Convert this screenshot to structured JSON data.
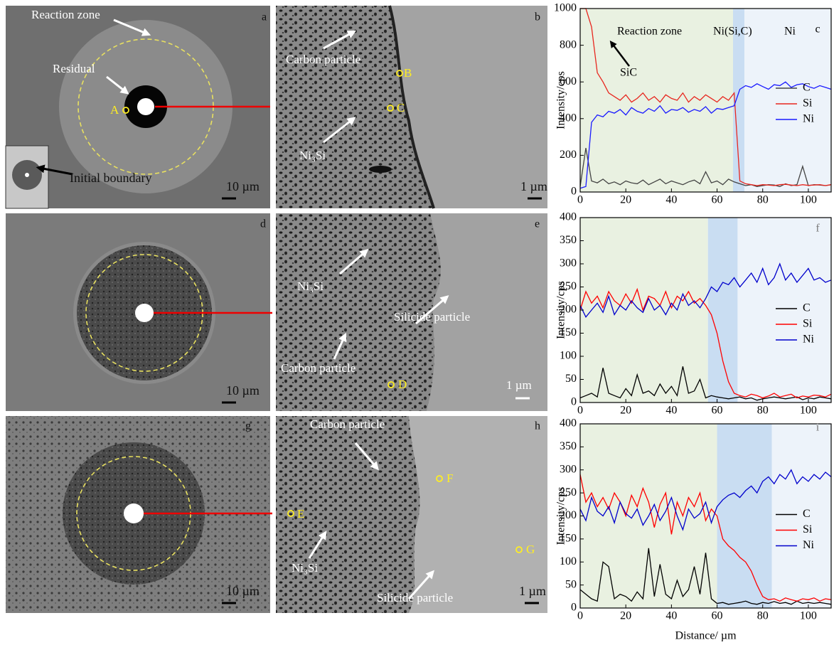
{
  "image_panels": [
    {
      "label": "a",
      "annotations": [
        "Reaction zone",
        "Residual",
        "A",
        "Initial boundary"
      ],
      "scale_bar": "10 µm"
    },
    {
      "label": "b",
      "annotations": [
        "Carbon particle",
        "B",
        "C",
        "Ni₃Si"
      ],
      "scale_bar": "1 µm"
    },
    {
      "label": "d",
      "scale_bar": "10 µm"
    },
    {
      "label": "e",
      "annotations": [
        "Ni₃Si",
        "Silicide particle",
        "Carbon particle",
        "D"
      ],
      "scale_bar": "1 µm"
    },
    {
      "label": "g",
      "scale_bar": "10 µm"
    },
    {
      "label": "h",
      "annotations": [
        "Carbon particle",
        "E",
        "F",
        "Ni₃Si",
        "G",
        "Silicide particle"
      ],
      "scale_bar": "1 µm"
    }
  ],
  "chart_data": [
    {
      "type": "line",
      "panel_label": "c",
      "y_label": "Intensity/cps",
      "annotations": [
        "Reaction zone",
        "Ni(Si,C)",
        "Ni",
        "SiC"
      ],
      "bands": [
        {
          "x": [
            0,
            67
          ],
          "color": "#e9f1e1"
        },
        {
          "x": [
            67,
            72
          ],
          "color": "#c9ddf2"
        },
        {
          "x": [
            72,
            110
          ],
          "color": "#edf3fa"
        }
      ],
      "x": [
        0,
        2.5,
        5,
        7.5,
        10,
        12.5,
        15,
        17.5,
        20,
        22.5,
        25,
        27.5,
        30,
        32.5,
        35,
        37.5,
        40,
        42.5,
        45,
        47.5,
        50,
        52.5,
        55,
        57.5,
        60,
        62.5,
        65,
        67.5,
        70,
        72.5,
        75,
        77.5,
        80,
        82.5,
        85,
        87.5,
        90,
        92.5,
        95,
        97.5,
        100,
        102.5,
        105,
        107.5,
        110
      ],
      "series": [
        {
          "name": "C",
          "color": "#444444",
          "values": [
            30,
            240,
            60,
            50,
            70,
            45,
            55,
            40,
            60,
            50,
            45,
            65,
            40,
            55,
            70,
            45,
            60,
            50,
            40,
            55,
            65,
            45,
            110,
            50,
            60,
            40,
            70,
            55,
            45,
            35,
            40,
            30,
            35,
            40,
            38,
            30,
            45,
            35,
            40,
            140,
            35,
            40,
            38,
            35,
            40
          ]
        },
        {
          "name": "Si",
          "color": "#e8261e",
          "values": [
            1000,
            1000,
            900,
            650,
            600,
            540,
            520,
            500,
            530,
            490,
            510,
            540,
            500,
            520,
            490,
            530,
            510,
            500,
            540,
            490,
            520,
            500,
            530,
            510,
            490,
            520,
            500,
            540,
            60,
            45,
            40,
            35,
            40,
            38,
            35,
            40,
            42,
            38,
            35,
            40,
            36,
            38,
            40,
            35,
            40
          ]
        },
        {
          "name": "Ni",
          "color": "#1a1aff",
          "values": [
            20,
            30,
            380,
            420,
            410,
            440,
            430,
            450,
            420,
            460,
            440,
            430,
            455,
            440,
            470,
            430,
            450,
            445,
            460,
            435,
            450,
            440,
            465,
            430,
            455,
            450,
            460,
            470,
            560,
            580,
            570,
            590,
            575,
            560,
            585,
            580,
            600,
            570,
            585,
            590,
            575,
            565,
            580,
            570,
            560
          ]
        }
      ],
      "xlim": [
        0,
        110
      ],
      "xticks": [
        0,
        20,
        40,
        60,
        80,
        100
      ],
      "ylim": [
        0,
        1000
      ],
      "yticks": [
        0,
        200,
        400,
        600,
        800,
        1000
      ],
      "legend": "center right"
    },
    {
      "type": "line",
      "panel_label": "f",
      "y_label": "Intensity/cps",
      "bands": [
        {
          "x": [
            0,
            56
          ],
          "color": "#e9f1e1"
        },
        {
          "x": [
            56,
            69
          ],
          "color": "#c9ddf2"
        },
        {
          "x": [
            69,
            110
          ],
          "color": "#edf3fa"
        }
      ],
      "x": [
        0,
        2.5,
        5,
        7.5,
        10,
        12.5,
        15,
        17.5,
        20,
        22.5,
        25,
        27.5,
        30,
        32.5,
        35,
        37.5,
        40,
        42.5,
        45,
        47.5,
        50,
        52.5,
        55,
        57.5,
        60,
        62.5,
        65,
        67.5,
        70,
        72.5,
        75,
        77.5,
        80,
        82.5,
        85,
        87.5,
        90,
        92.5,
        95,
        97.5,
        100,
        102.5,
        105,
        107.5,
        110
      ],
      "series": [
        {
          "name": "C",
          "color": "#000000",
          "values": [
            10,
            15,
            20,
            12,
            75,
            20,
            15,
            10,
            30,
            15,
            60,
            20,
            25,
            15,
            40,
            20,
            35,
            15,
            78,
            20,
            25,
            50,
            10,
            15,
            12,
            10,
            8,
            10,
            12,
            8,
            10,
            5,
            8,
            10,
            12,
            10,
            8,
            10,
            12,
            6,
            10,
            8,
            12,
            10,
            8
          ]
        },
        {
          "name": "Si",
          "color": "#ff0000",
          "values": [
            200,
            240,
            215,
            230,
            205,
            240,
            220,
            210,
            235,
            215,
            245,
            200,
            230,
            225,
            210,
            240,
            205,
            230,
            220,
            240,
            215,
            225,
            210,
            190,
            150,
            90,
            45,
            20,
            15,
            12,
            18,
            15,
            10,
            14,
            20,
            12,
            15,
            18,
            10,
            14,
            12,
            16,
            15,
            12,
            18
          ]
        },
        {
          "name": "Ni",
          "color": "#0000cc",
          "values": [
            210,
            185,
            200,
            215,
            195,
            230,
            190,
            210,
            200,
            220,
            205,
            195,
            225,
            200,
            210,
            190,
            215,
            200,
            235,
            210,
            220,
            205,
            225,
            250,
            240,
            260,
            255,
            270,
            250,
            265,
            280,
            260,
            290,
            255,
            270,
            300,
            265,
            280,
            260,
            275,
            290,
            265,
            270,
            260,
            265
          ]
        }
      ],
      "xlim": [
        0,
        110
      ],
      "xticks": [
        0,
        20,
        40,
        60,
        80,
        100
      ],
      "ylim": [
        0,
        400
      ],
      "yticks": [
        0,
        50,
        100,
        150,
        200,
        250,
        300,
        350,
        400
      ],
      "legend": "center right"
    },
    {
      "type": "line",
      "panel_label": "i",
      "y_label": "Intensity/cps",
      "x_label": "Distance/ µm",
      "bands": [
        {
          "x": [
            0,
            60
          ],
          "color": "#e9f1e1"
        },
        {
          "x": [
            60,
            84
          ],
          "color": "#c9ddf2"
        },
        {
          "x": [
            84,
            110
          ],
          "color": "#edf3fa"
        }
      ],
      "x": [
        0,
        2.5,
        5,
        7.5,
        10,
        12.5,
        15,
        17.5,
        20,
        22.5,
        25,
        27.5,
        30,
        32.5,
        35,
        37.5,
        40,
        42.5,
        45,
        47.5,
        50,
        52.5,
        55,
        57.5,
        60,
        62.5,
        65,
        67.5,
        70,
        72.5,
        75,
        77.5,
        80,
        82.5,
        85,
        87.5,
        90,
        92.5,
        95,
        97.5,
        100,
        102.5,
        105,
        107.5,
        110
      ],
      "series": [
        {
          "name": "C",
          "color": "#000000",
          "values": [
            40,
            30,
            20,
            15,
            100,
            90,
            20,
            30,
            25,
            15,
            35,
            20,
            130,
            25,
            95,
            30,
            20,
            60,
            25,
            40,
            90,
            30,
            120,
            20,
            10,
            12,
            8,
            10,
            12,
            15,
            10,
            8,
            12,
            10,
            14,
            10,
            12,
            8,
            15,
            10,
            12,
            10,
            12,
            10,
            8
          ]
        },
        {
          "name": "Si",
          "color": "#ff0000",
          "values": [
            290,
            230,
            250,
            220,
            240,
            215,
            250,
            230,
            200,
            245,
            220,
            260,
            230,
            175,
            225,
            250,
            160,
            230,
            200,
            240,
            220,
            250,
            190,
            215,
            200,
            150,
            135,
            125,
            110,
            100,
            80,
            50,
            25,
            18,
            20,
            15,
            22,
            18,
            15,
            20,
            18,
            22,
            15,
            20,
            18
          ]
        },
        {
          "name": "Ni",
          "color": "#0000cc",
          "values": [
            215,
            190,
            240,
            210,
            200,
            220,
            185,
            230,
            205,
            195,
            215,
            180,
            200,
            225,
            190,
            210,
            240,
            200,
            170,
            215,
            195,
            205,
            230,
            185,
            220,
            235,
            245,
            250,
            240,
            255,
            265,
            250,
            275,
            285,
            270,
            290,
            280,
            300,
            270,
            285,
            275,
            290,
            280,
            295,
            285
          ]
        }
      ],
      "xlim": [
        0,
        110
      ],
      "xticks": [
        0,
        20,
        40,
        60,
        80,
        100
      ],
      "ylim": [
        0,
        400
      ],
      "yticks": [
        0,
        50,
        100,
        150,
        200,
        250,
        300,
        350,
        400
      ],
      "legend": "center right"
    }
  ]
}
